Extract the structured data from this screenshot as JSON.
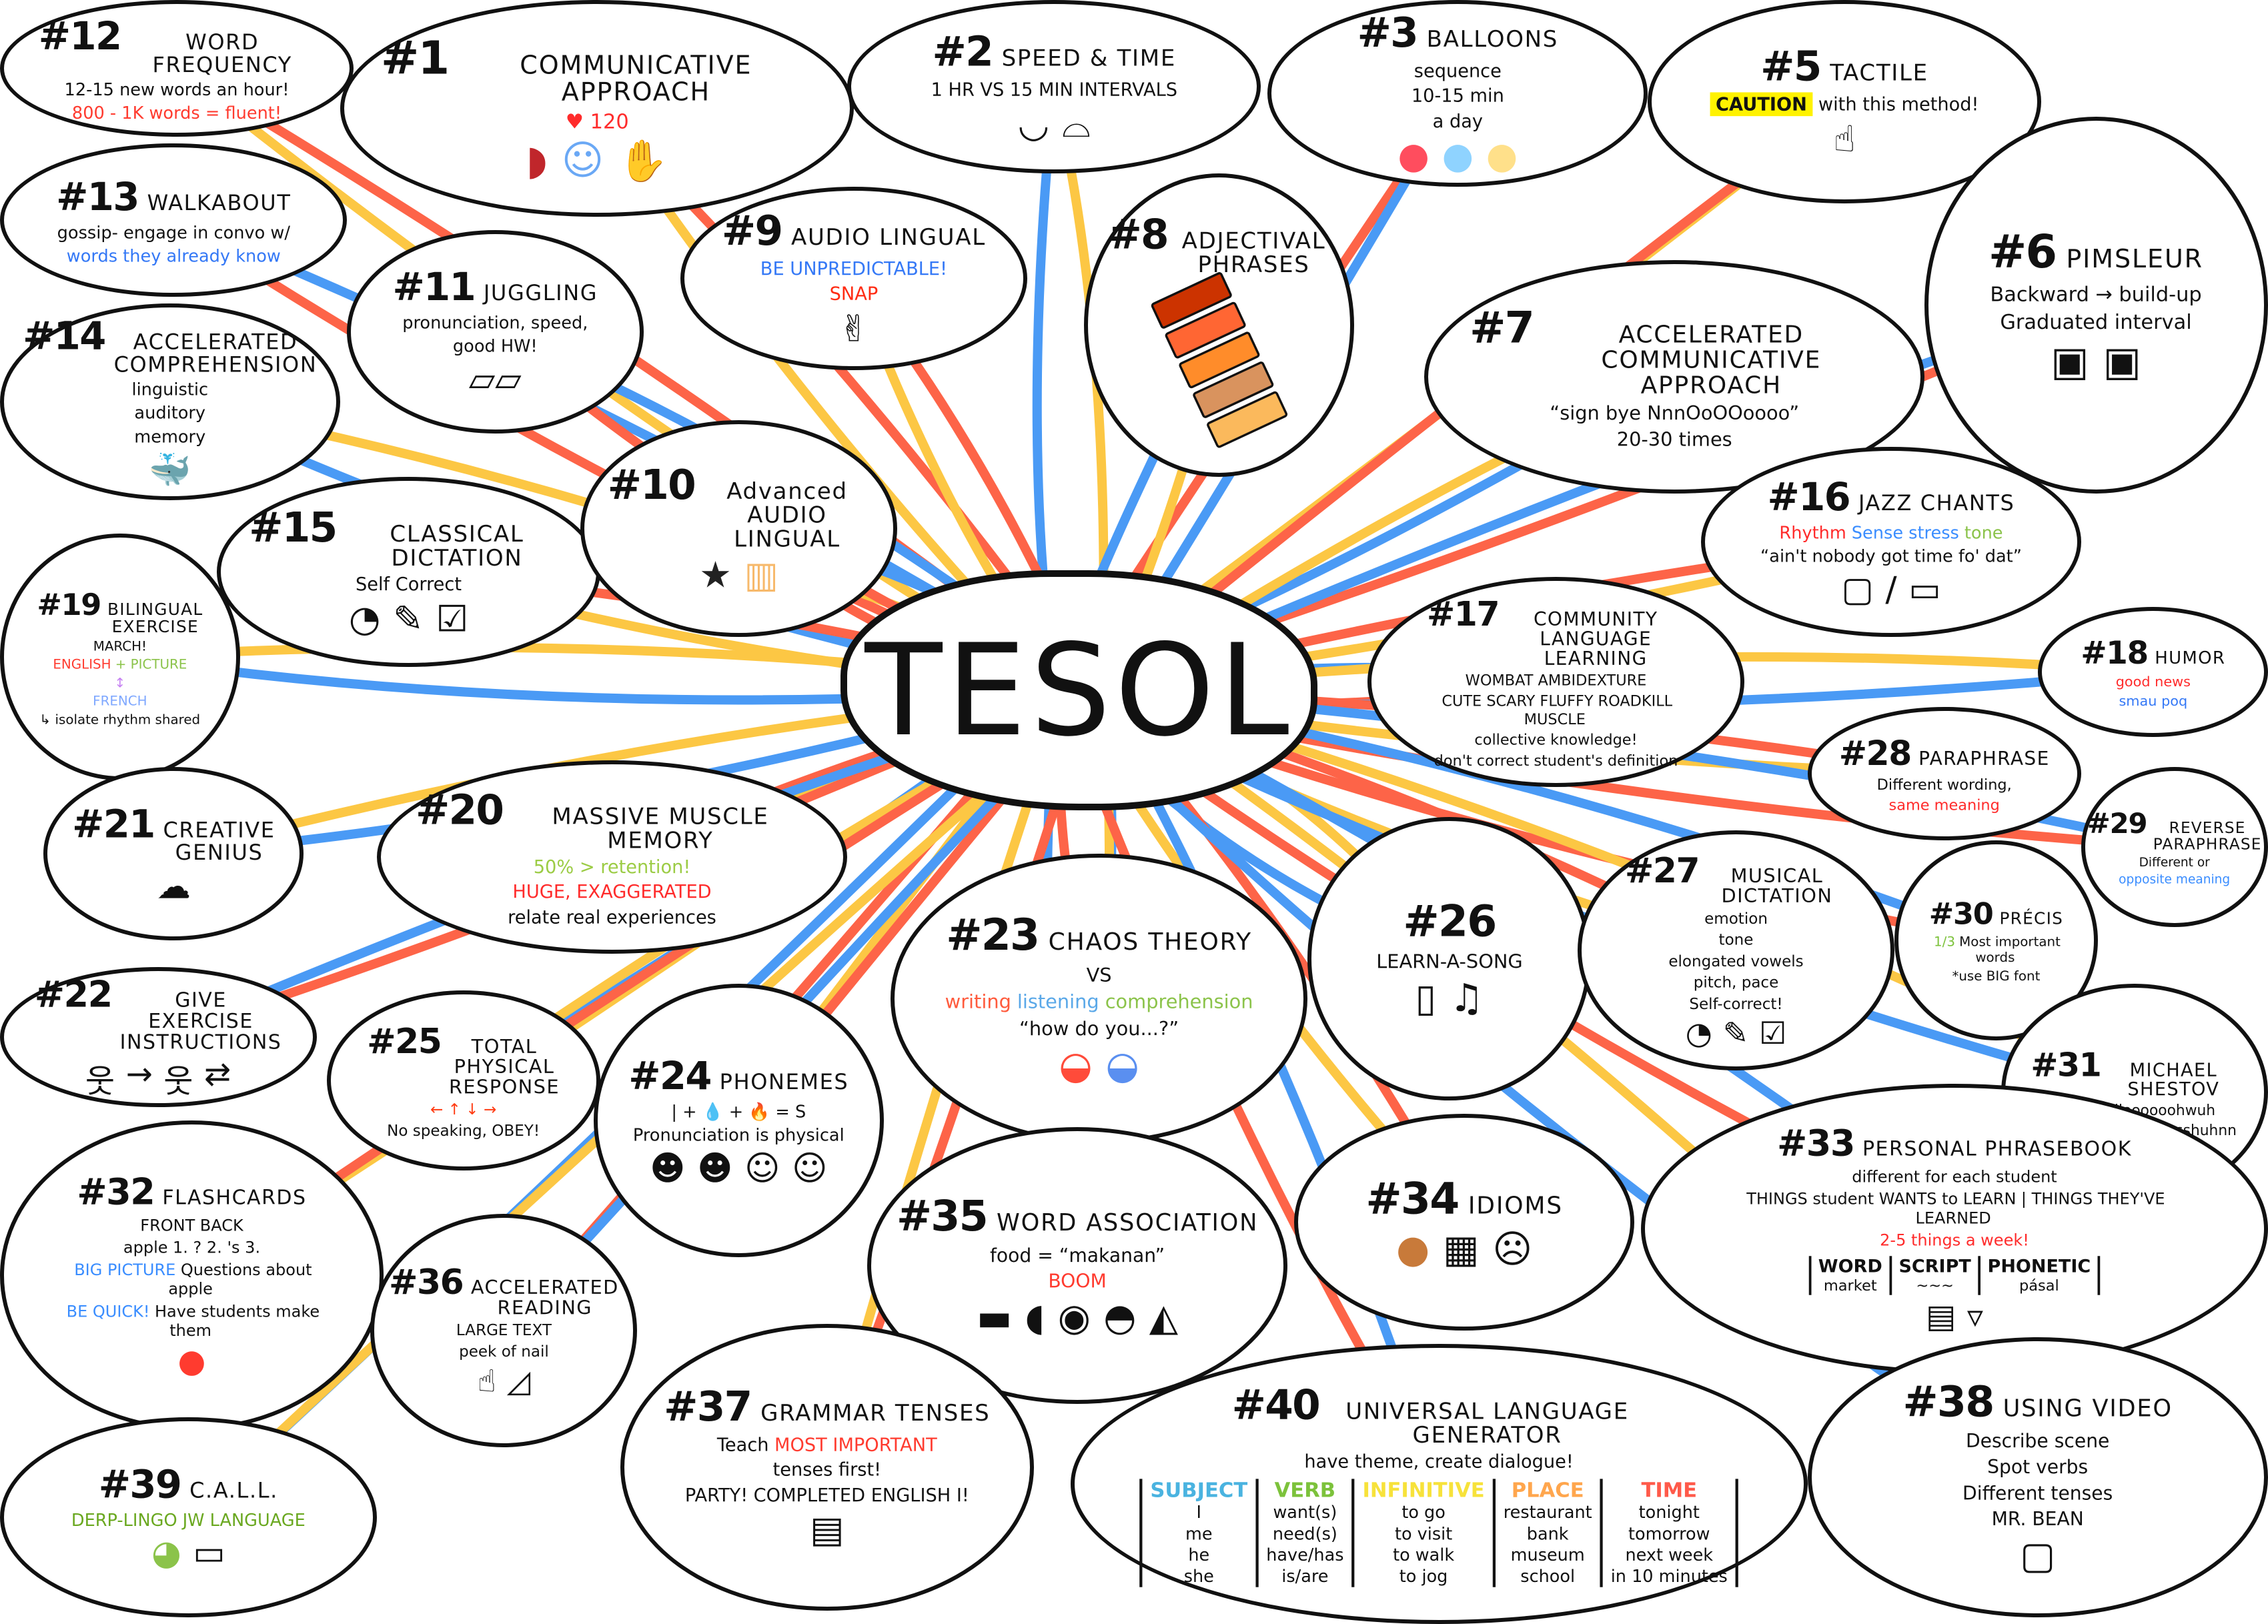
{
  "center": {
    "label": "TESOL"
  },
  "colors": {
    "link_yellow": "#fcc744",
    "link_red": "#fd6448",
    "link_blue": "#4a9af5",
    "outline": "#111111"
  },
  "nodes": [
    {
      "number": "#12",
      "title": "WORD FREQUENCY",
      "lines": [
        [
          {
            "t": "12-15 new words an hour!"
          }
        ],
        [
          {
            "t": "800 - 1K words = fluent!",
            "c": "#ff3b2f"
          }
        ]
      ]
    },
    {
      "number": "#13",
      "title": "WALKABOUT",
      "lines": [
        [
          {
            "t": "gossip- engage in convo w/"
          }
        ],
        [
          {
            "t": "words they already know",
            "c": "#3478f6"
          }
        ]
      ]
    },
    {
      "number": "#14",
      "title": "ACCELERATED COMPREHENSION",
      "lines": [
        [
          {
            "t": "linguistic"
          }
        ],
        [
          {
            "t": "auditory"
          }
        ],
        [
          {
            "t": "memory"
          }
        ]
      ],
      "icons": [
        "whale"
      ]
    },
    {
      "number": "#1",
      "title": "COMMUNICATIVE APPROACH",
      "lines": [
        [
          {
            "t": "♥ 120",
            "c": "#ff2b2b"
          }
        ]
      ],
      "icons": [
        "steak",
        "head-speaking",
        "handshake"
      ]
    },
    {
      "number": "#11",
      "title": "JUGGLING",
      "lines": [
        [
          {
            "t": "pronunciation, speed,"
          }
        ],
        [
          {
            "t": "good HW!"
          }
        ]
      ],
      "icons": [
        "sticky-notes"
      ]
    },
    {
      "number": "#2",
      "title": "SPEED & TIME",
      "lines": [
        [
          {
            "t": "1 HR"
          },
          {
            "t": "VS"
          },
          {
            "t": "15 MIN INTERVALS"
          }
        ]
      ],
      "icons": [
        "u-curve-chart",
        "scalloped-chart"
      ]
    },
    {
      "number": "#9",
      "title": "AUDIO LINGUAL",
      "lines": [
        [
          {
            "t": "BE UNPREDICTABLE!",
            "c": "#3478f6"
          }
        ],
        [
          {
            "t": "SNAP",
            "c": "#ff2b12"
          }
        ]
      ],
      "icons": [
        "snapping-hand"
      ]
    },
    {
      "number": "#3",
      "title": "BALLOONS",
      "lines": [
        [
          {
            "t": "sequence"
          }
        ],
        [
          {
            "t": "10-15 min"
          }
        ],
        [
          {
            "t": "a day"
          }
        ]
      ],
      "icons": [
        "balloon-red",
        "balloon-blue",
        "balloon-yellow"
      ]
    },
    {
      "number": "#8",
      "title": "ADJECTIVAL PHRASES",
      "lines": [],
      "swatches": [
        "#cc3300",
        "#ff6633",
        "#ff8c2a",
        "#d9935e",
        "#fbb95c"
      ]
    },
    {
      "number": "#5",
      "title": "TACTILE",
      "lines": [
        [
          {
            "t": "CAUTION",
            "c": "#111111",
            "bg": "#fff200"
          },
          {
            "t": "with this method!"
          }
        ]
      ],
      "icons": [
        "pointing-hand"
      ]
    },
    {
      "number": "#6",
      "title": "PIMSLEUR",
      "lines": [
        [
          {
            "t": "Backward"
          },
          {
            "t": "→"
          },
          {
            "t": "build-up"
          }
        ],
        [
          {
            "t": "Graduated interval"
          }
        ]
      ],
      "icons": [
        "landscape-picture",
        "landscape-picture"
      ]
    },
    {
      "number": "#7",
      "title": "ACCELERATED COMMUNICATIVE APPROACH",
      "lines": [
        [
          {
            "t": "“sign bye NnnOoOOoooo”"
          }
        ],
        [
          {
            "t": "20-30 times"
          }
        ]
      ]
    },
    {
      "number": "#15",
      "title": "CLASSICAL DICTATION",
      "lines": [
        [
          {
            "t": "Self Correct"
          }
        ]
      ],
      "icons": [
        "ear",
        "pencil",
        "checklist"
      ]
    },
    {
      "number": "#10",
      "title": "Advanced AUDIO LINGUAL",
      "lines": [],
      "icons": [
        "police-badge",
        "beer-mug"
      ]
    },
    {
      "number": "#19",
      "title": "BILINGUAL EXERCISE",
      "lines": [
        [
          {
            "t": "MARCH!"
          }
        ],
        [
          {
            "t": "ENGLISH",
            "c": "#ff3b2f"
          },
          {
            "t": "+ PICTURE",
            "c": "#8bc34a"
          }
        ],
        [
          {
            "t": "↕",
            "c": "#c57ff2"
          }
        ],
        [
          {
            "t": "FRENCH",
            "c": "#7fa8ff"
          }
        ],
        [
          {
            "t": "↳ isolate rhythm shared"
          }
        ]
      ]
    },
    {
      "number": "#16",
      "title": "JAZZ CHANTS",
      "lines": [
        [
          {
            "t": "Rhythm",
            "c": "#ff2b2b"
          },
          {
            "t": "Sense",
            "c": "#3a8dff"
          },
          {
            "t": "stress",
            "c": "#3a8dff"
          },
          {
            "t": "tone",
            "c": "#8bc34a"
          }
        ],
        [
          {
            "t": "“ain't nobody got time fo' dat”"
          }
        ]
      ],
      "icons": [
        "bread",
        "knife",
        "butter"
      ]
    },
    {
      "number": "#17",
      "title": "COMMUNITY LANGUAGE LEARNING",
      "lines": [
        [
          {
            "t": "WOMBAT AMBIDEXTURE"
          }
        ],
        [
          {
            "t": "CUTE SCARY FLUFFY"
          },
          {
            "t": "ROADKILL MUSCLE"
          }
        ],
        [
          {
            "t": "collective knowledge!"
          }
        ],
        [
          {
            "t": "don't correct student's definition"
          }
        ]
      ]
    },
    {
      "number": "#18",
      "title": "HUMOR",
      "lines": [
        [
          {
            "t": "good news",
            "c": "#ff2b2b"
          }
        ],
        [
          {
            "t": "smau poq",
            "c": "#3478f6"
          }
        ]
      ]
    },
    {
      "number": "#28",
      "title": "PARAPHRASE",
      "lines": [
        [
          {
            "t": "Different wording,"
          }
        ],
        [
          {
            "t": "same meaning",
            "c": "#ff2b2b"
          }
        ]
      ]
    },
    {
      "number": "#29",
      "title": "REVERSE PARAPHRASE",
      "lines": [
        [
          {
            "t": "Different or"
          }
        ],
        [
          {
            "t": "opposite meaning",
            "c": "#3a8dff"
          }
        ]
      ]
    },
    {
      "number": "#21",
      "title": "CREATIVE GENIUS",
      "lines": [],
      "icons": [
        "thought-cloud"
      ]
    },
    {
      "number": "#20",
      "title": "MASSIVE MUSCLE MEMORY",
      "lines": [
        [
          {
            "t": "50% > retention!",
            "c": "#9ccc45"
          }
        ],
        [
          {
            "t": "HUGE, EXAGGERATED",
            "c": "#ff2b2b"
          }
        ],
        [
          {
            "t": "relate real experiences"
          }
        ]
      ]
    },
    {
      "number": "#22",
      "title": "GIVE EXERCISE INSTRUCTIONS",
      "lines": [],
      "icons": [
        "stick-figure",
        "arrow-right",
        "stick-figure",
        "repeat-arrows"
      ]
    },
    {
      "number": "#25",
      "title": "TOTAL PHYSICAL RESPONSE",
      "lines": [
        [
          {
            "t": "← ↑ ↓ →",
            "c": "#ff3b12"
          }
        ],
        [
          {
            "t": "No speaking, OBEY!"
          }
        ]
      ]
    },
    {
      "number": "#24",
      "title": "PHONEMES",
      "lines": [
        [
          {
            "t": "| + 💧 + 🔥 = S"
          }
        ],
        [
          {
            "t": "Pronunciation is physical"
          }
        ]
      ],
      "icons": [
        "mouth-face",
        "tongue-face",
        "throat-face",
        "breath-face"
      ]
    },
    {
      "number": "#23",
      "title": "CHAOS THEORY",
      "lines": [
        [
          {
            "t": "VS"
          }
        ],
        [
          {
            "t": "writing",
            "c": "#ff5a3c"
          },
          {
            "t": "listening",
            "c": "#5aa8e8"
          },
          {
            "t": "comprehension",
            "c": "#8bc34a"
          }
        ],
        [
          {
            "t": "“how do you...?”"
          }
        ]
      ],
      "icons": [
        "rice-bowl-red",
        "rice-bowl-blue"
      ]
    },
    {
      "number": "#26",
      "title": "",
      "lines": [
        [
          {
            "t": "LEARN-A-SONG"
          }
        ]
      ],
      "icons": [
        "phone",
        "music-note"
      ]
    },
    {
      "number": "#27",
      "title": "MUSICAL DICTATION",
      "lines": [
        [
          {
            "t": "emotion"
          }
        ],
        [
          {
            "t": "tone"
          }
        ],
        [
          {
            "t": "elongated vowels"
          }
        ],
        [
          {
            "t": "pitch, pace"
          }
        ],
        [
          {
            "t": "Self-correct!"
          }
        ]
      ],
      "icons": [
        "ear",
        "pencil",
        "checklist"
      ]
    },
    {
      "number": "#30",
      "title": "PRÉCIS",
      "lines": [
        [
          {
            "t": "1/3",
            "c": "#7cc23b"
          },
          {
            "t": "Most important words"
          }
        ],
        [
          {
            "t": "*use BIG font"
          }
        ]
      ]
    },
    {
      "number": "#31",
      "title": "MICHAEL SHESTOV",
      "lines": [
        [
          {
            "t": "sssssuhllloooooohwuh"
          }
        ],
        [
          {
            "t": "eeennuuhnseeeayysshuhnn"
          }
        ]
      ]
    },
    {
      "number": "#32",
      "title": "FLASHCARDS",
      "lines": [
        [
          {
            "t": "FRONT"
          },
          {
            "t": "BACK"
          }
        ],
        [
          {
            "t": "apple"
          },
          {
            "t": "1. ?  2. 's  3."
          }
        ],
        [
          {
            "t": "BIG PICTURE",
            "c": "#3a8dff"
          },
          {
            "t": "Questions about apple"
          }
        ],
        [
          {
            "t": "BE QUICK!",
            "c": "#3a8dff"
          },
          {
            "t": "Have students make them"
          }
        ]
      ],
      "icons": [
        "apple"
      ]
    },
    {
      "number": "#36",
      "title": "ACCELERATED READING",
      "lines": [
        [
          {
            "t": "LARGE TEXT"
          }
        ],
        [
          {
            "t": "peek of nail"
          }
        ]
      ],
      "icons": [
        "finger",
        "page-flip"
      ]
    },
    {
      "number": "#35",
      "title": "WORD ASSOCIATION",
      "lines": [
        [
          {
            "t": "food = “makanan”"
          }
        ],
        [
          {
            "t": "BOOM",
            "c": "#ff3b2f"
          }
        ]
      ],
      "icons": [
        "cannon",
        "chicken-leg",
        "egg",
        "burger",
        "pizza"
      ]
    },
    {
      "number": "#34",
      "title": "IDIOMS",
      "lines": [],
      "icons": [
        "cookie",
        "cat-in-box",
        "egg-on-face"
      ]
    },
    {
      "number": "#33",
      "title": "PERSONAL PHRASEBOOK",
      "lines": [
        [
          {
            "t": "different for each student"
          }
        ],
        [
          {
            "t": "THINGS student WANTS to LEARN"
          },
          {
            "t": "| THINGS THEY'VE LEARNED"
          }
        ],
        [
          {
            "t": "2-5 things a week!",
            "c": "#ff2b2b"
          }
        ]
      ],
      "icons": [
        "book",
        "trash-can"
      ],
      "table": {
        "headers": [
          {
            "t": "WORD"
          },
          {
            "t": "SCRIPT"
          },
          {
            "t": "PHONETIC"
          }
        ],
        "cols": [
          [
            "market"
          ],
          [
            "~~~"
          ],
          [
            "pásal"
          ]
        ]
      }
    },
    {
      "number": "#39",
      "title": "C.A.L.L.",
      "lines": [
        [
          {
            "t": "DERP-LINGO",
            "c": "#6aa820"
          },
          {
            "t": "JW LANGUAGE",
            "c": "#6aa820"
          }
        ]
      ],
      "icons": [
        "owl",
        "laptop"
      ]
    },
    {
      "number": "#37",
      "title": "GRAMMAR TENSES",
      "lines": [
        [
          {
            "t": "Teach"
          },
          {
            "t": "MOST IMPORTANT",
            "c": "#ff3b2f"
          }
        ],
        [
          {
            "t": "tenses first!"
          }
        ],
        [
          {
            "t": "PARTY!"
          },
          {
            "t": "COMPLETED ENGLISH I!"
          }
        ]
      ],
      "icons": [
        "certificate"
      ]
    },
    {
      "number": "#40",
      "title": "UNIVERSAL LANGUAGE GENERATOR",
      "lines": [
        [
          {
            "t": "have theme, create dialogue!"
          }
        ]
      ],
      "table": {
        "headers": [
          {
            "t": "SUBJECT",
            "c": "#4ab3e0"
          },
          {
            "t": "VERB",
            "c": "#7cc23b"
          },
          {
            "t": "INFINITIVE",
            "c": "#f7e23a"
          },
          {
            "t": "PLACE",
            "c": "#ffa64d"
          },
          {
            "t": "TIME",
            "c": "#ff5a4a"
          }
        ],
        "cols": [
          [
            "I",
            "me",
            "he",
            "she"
          ],
          [
            "want(s)",
            "need(s)",
            "have/has",
            "is/are"
          ],
          [
            "to go",
            "to visit",
            "to walk",
            "to jog"
          ],
          [
            "restaurant",
            "bank",
            "museum",
            "school"
          ],
          [
            "tonight",
            "tomorrow",
            "next week",
            "in 10 minutes"
          ]
        ]
      }
    },
    {
      "number": "#38",
      "title": "USING VIDEO",
      "lines": [
        [
          {
            "t": "Describe scene"
          }
        ],
        [
          {
            "t": "Spot verbs"
          }
        ],
        [
          {
            "t": "Different tenses"
          }
        ],
        [
          {
            "t": "MR. BEAN"
          }
        ]
      ],
      "icons": [
        "tv-frame"
      ]
    }
  ]
}
